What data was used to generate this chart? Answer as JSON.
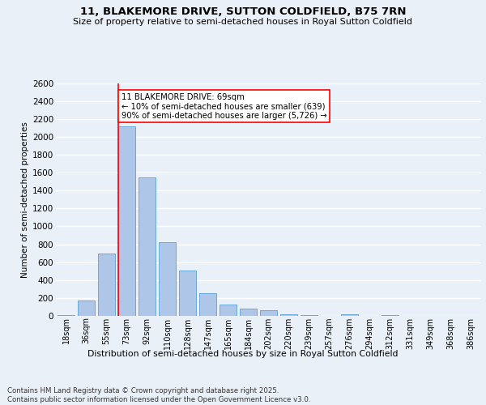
{
  "title1": "11, BLAKEMORE DRIVE, SUTTON COLDFIELD, B75 7RN",
  "title2": "Size of property relative to semi-detached houses in Royal Sutton Coldfield",
  "xlabel": "Distribution of semi-detached houses by size in Royal Sutton Coldfield",
  "ylabel": "Number of semi-detached properties",
  "footnote": "Contains HM Land Registry data © Crown copyright and database right 2025.\nContains public sector information licensed under the Open Government Licence v3.0.",
  "bar_labels": [
    "18sqm",
    "36sqm",
    "55sqm",
    "73sqm",
    "92sqm",
    "110sqm",
    "128sqm",
    "147sqm",
    "165sqm",
    "184sqm",
    "202sqm",
    "220sqm",
    "239sqm",
    "257sqm",
    "276sqm",
    "294sqm",
    "312sqm",
    "331sqm",
    "349sqm",
    "368sqm",
    "386sqm"
  ],
  "bar_values": [
    10,
    175,
    700,
    2120,
    1550,
    825,
    510,
    250,
    130,
    85,
    60,
    20,
    5,
    0,
    20,
    0,
    5,
    0,
    0,
    0,
    0
  ],
  "bar_color": "#aec6e8",
  "bar_edge_color": "#5a9fd4",
  "vline_x_index": 3,
  "vline_color": "red",
  "annotation_text": "11 BLAKEMORE DRIVE: 69sqm\n← 10% of semi-detached houses are smaller (639)\n90% of semi-detached houses are larger (5,726) →",
  "annotation_box_color": "white",
  "annotation_box_edge": "red",
  "ylim": [
    0,
    2600
  ],
  "yticks": [
    0,
    200,
    400,
    600,
    800,
    1000,
    1200,
    1400,
    1600,
    1800,
    2000,
    2200,
    2400,
    2600
  ],
  "bg_color": "#eaf0f8",
  "plot_bg_color": "#eaf0f8",
  "grid_color": "white"
}
